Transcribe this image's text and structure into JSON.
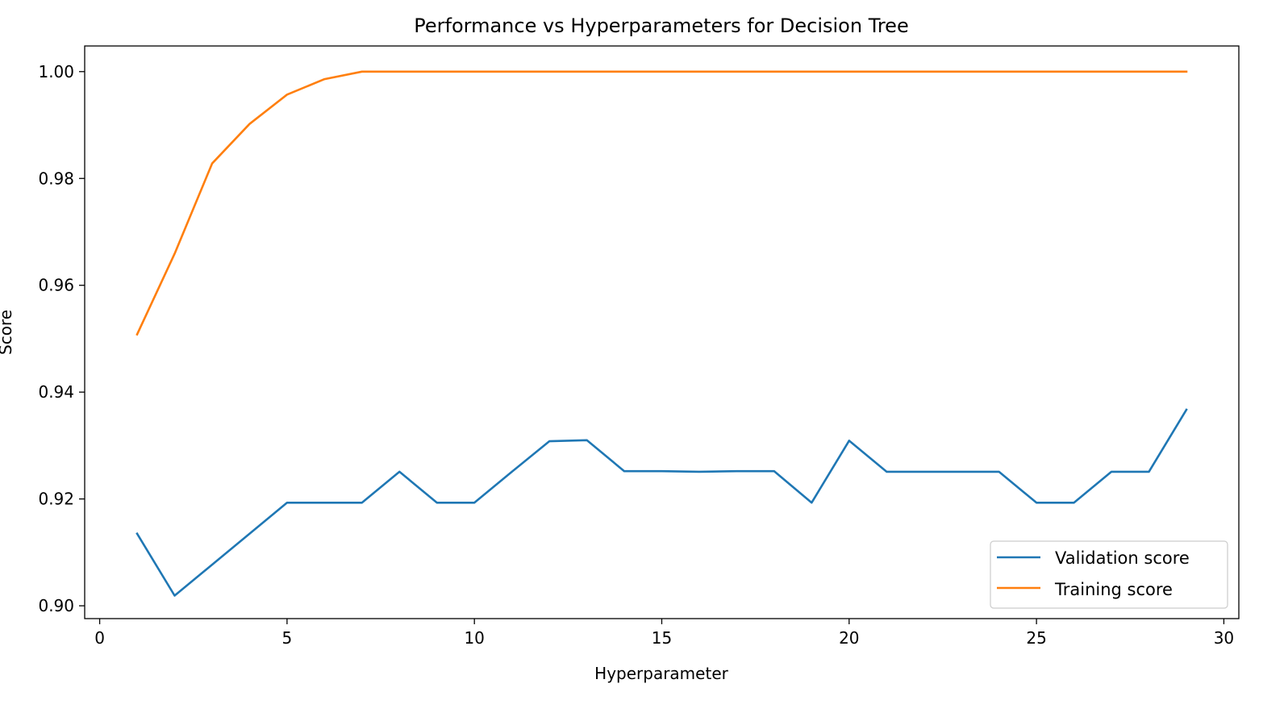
{
  "chart_data": {
    "type": "line",
    "title": "Performance vs Hyperparameters for Decision Tree",
    "xlabel": "Hyperparameter",
    "ylabel": "Score",
    "xlim": [
      -0.4,
      30.4
    ],
    "ylim": [
      0.8976,
      1.0048
    ],
    "xticks": [
      0,
      5,
      10,
      15,
      20,
      25,
      30
    ],
    "xtick_labels": [
      "0",
      "5",
      "10",
      "15",
      "20",
      "25",
      "30"
    ],
    "yticks": [
      0.9,
      0.92,
      0.94,
      0.96,
      0.98,
      1.0
    ],
    "ytick_labels": [
      "0.90",
      "0.92",
      "0.94",
      "0.96",
      "0.98",
      "1.00"
    ],
    "grid": false,
    "legend_position": "lower-right",
    "x": [
      1,
      2,
      3,
      4,
      5,
      6,
      7,
      8,
      9,
      10,
      11,
      12,
      13,
      14,
      15,
      16,
      17,
      18,
      19,
      20,
      21,
      22,
      23,
      24,
      25,
      26,
      27,
      28,
      29
    ],
    "series": [
      {
        "name": "Validation score",
        "color": "#1f77b4",
        "values": [
          0.9135,
          0.9019,
          0.9077,
          0.9135,
          0.9193,
          0.9193,
          0.9193,
          0.9251,
          0.9193,
          0.9193,
          0.9251,
          0.9308,
          0.931,
          0.9252,
          0.9252,
          0.9251,
          0.9252,
          0.9252,
          0.9193,
          0.9309,
          0.9251,
          0.9251,
          0.9251,
          0.9251,
          0.9193,
          0.9193,
          0.9251,
          0.9251,
          0.9367
        ]
      },
      {
        "name": "Training score",
        "color": "#ff7f0e",
        "values": [
          0.9508,
          0.9659,
          0.9828,
          0.9902,
          0.9957,
          0.9986,
          1.0,
          1.0,
          1.0,
          1.0,
          1.0,
          1.0,
          1.0,
          1.0,
          1.0,
          1.0,
          1.0,
          1.0,
          1.0,
          1.0,
          1.0,
          1.0,
          1.0,
          1.0,
          1.0,
          1.0,
          1.0,
          1.0,
          1.0
        ]
      }
    ]
  }
}
